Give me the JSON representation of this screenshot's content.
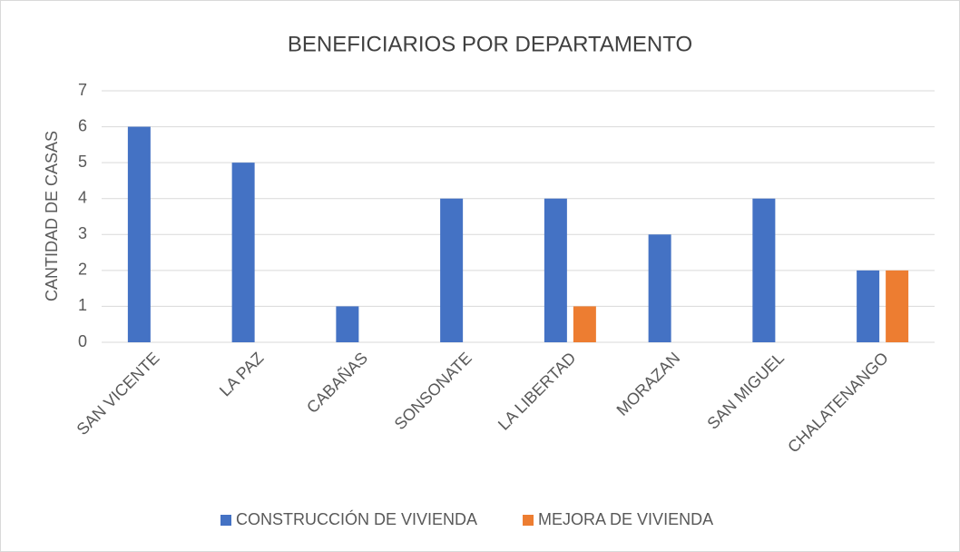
{
  "chart_data": {
    "type": "bar",
    "title": "BENEFICIARIOS POR DEPARTAMENTO",
    "y_label": "CANTIDAD DE CASAS",
    "categories": [
      "SAN VICENTE",
      "LA PAZ",
      "CABAÑAS",
      "SONSONATE",
      "LA LIBERTAD",
      "MORAZAN",
      "SAN MIGUEL",
      "CHALATENANGO"
    ],
    "series": [
      {
        "name": "CONSTRUCCIÓN DE VIVIENDA",
        "color": "#4472c4",
        "values": [
          6,
          5,
          1,
          4,
          4,
          3,
          4,
          2
        ]
      },
      {
        "name": "MEJORA DE VIVIENDA",
        "color": "#ed7d31",
        "values": [
          null,
          null,
          null,
          null,
          1,
          null,
          null,
          2
        ]
      }
    ],
    "ylim": [
      0,
      7
    ],
    "yticks": [
      0,
      1,
      2,
      3,
      4,
      5,
      6,
      7
    ],
    "grid": true,
    "legend": "bottom"
  }
}
